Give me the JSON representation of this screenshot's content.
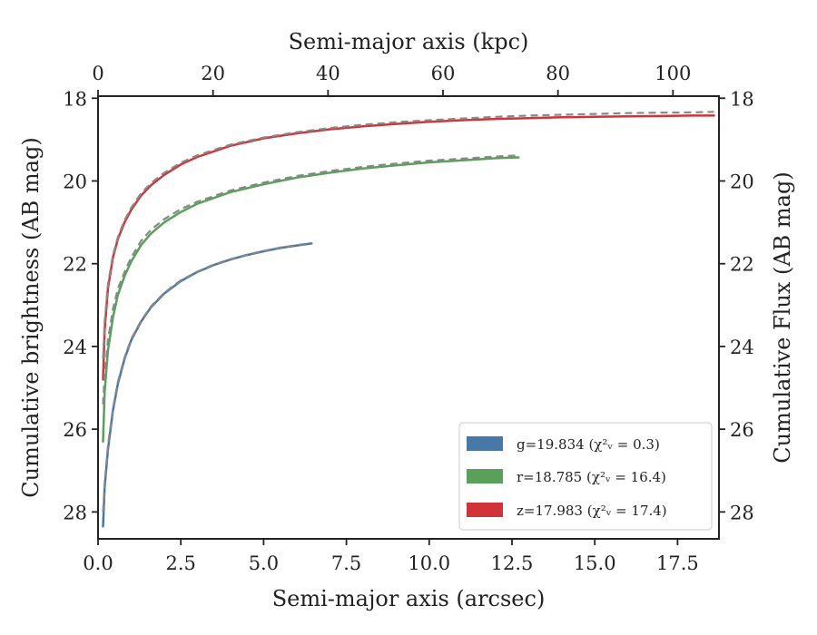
{
  "chart_data": {
    "type": "line",
    "xlabel": "Semi-major axis (arcsec)",
    "ylabel": "Cumulative brightness (AB mag)",
    "x2label": "Semi-major axis (kpc)",
    "y2label": "Cumulative Flux (AB mag)",
    "xlim": [
      0,
      18.75
    ],
    "ylim": [
      28.65,
      17.95
    ],
    "x2lim": [
      0,
      108
    ],
    "xticks": [
      "0.0",
      "2.5",
      "5.0",
      "7.5",
      "10.0",
      "12.5",
      "15.0",
      "17.5"
    ],
    "yticks": [
      "18",
      "20",
      "22",
      "24",
      "26",
      "28"
    ],
    "x2ticks": [
      "0",
      "20",
      "40",
      "60",
      "80",
      "100"
    ],
    "y2ticks": [
      "18",
      "20",
      "22",
      "24",
      "26",
      "28"
    ],
    "grid": false,
    "legend_position": "lower-right",
    "series": [
      {
        "name": "g=19.834",
        "chi_label": "(χ²ᵥ = 0.3)",
        "color": "#4878a8",
        "x": [
          0.15,
          0.2,
          0.3,
          0.45,
          0.6,
          0.8,
          1.0,
          1.3,
          1.6,
          2.0,
          2.5,
          3.0,
          3.5,
          4.0,
          4.5,
          5.0,
          5.5,
          6.0,
          6.45
        ],
        "values": [
          28.35,
          27.4,
          26.5,
          25.55,
          24.9,
          24.3,
          23.85,
          23.4,
          23.05,
          22.72,
          22.42,
          22.2,
          22.03,
          21.9,
          21.79,
          21.7,
          21.62,
          21.56,
          21.51
        ]
      },
      {
        "name": "r=18.785",
        "chi_label": "(χ²ᵥ = 16.4)",
        "color": "#5aa05a",
        "x": [
          0.15,
          0.2,
          0.3,
          0.45,
          0.6,
          0.8,
          1.0,
          1.3,
          1.6,
          2.0,
          2.5,
          3.0,
          4.0,
          5.0,
          6.0,
          7.0,
          8.0,
          9.0,
          10.0,
          11.0,
          12.0,
          12.7
        ],
        "values": [
          26.3,
          25.1,
          24.1,
          23.3,
          22.75,
          22.3,
          21.95,
          21.55,
          21.27,
          21.0,
          20.75,
          20.55,
          20.27,
          20.08,
          19.92,
          19.8,
          19.7,
          19.62,
          19.55,
          19.5,
          19.45,
          19.43
        ]
      },
      {
        "name": "z=17.983",
        "chi_label": "(χ²ᵥ = 17.4)",
        "color": "#d03438",
        "x": [
          0.15,
          0.2,
          0.3,
          0.45,
          0.6,
          0.8,
          1.0,
          1.3,
          1.6,
          2.0,
          2.5,
          3.0,
          4.0,
          5.0,
          6.0,
          7.0,
          8.0,
          9.0,
          10.0,
          11.0,
          12.0,
          13.0,
          14.0,
          15.0,
          16.0,
          17.0,
          18.0,
          18.6
        ],
        "values": [
          24.8,
          23.6,
          22.6,
          21.85,
          21.4,
          21.0,
          20.7,
          20.35,
          20.1,
          19.85,
          19.6,
          19.42,
          19.15,
          18.97,
          18.85,
          18.75,
          18.68,
          18.62,
          18.57,
          18.53,
          18.5,
          18.48,
          18.46,
          18.45,
          18.44,
          18.43,
          18.42,
          18.42
        ]
      }
    ],
    "model_series": [
      {
        "color": "#888888",
        "x": [
          0.15,
          0.2,
          0.3,
          0.45,
          0.6,
          0.8,
          1.0,
          1.3,
          1.6,
          2.0,
          2.5,
          3.0,
          3.5,
          4.0,
          4.5,
          5.0,
          5.5,
          6.0,
          6.45
        ],
        "values": [
          28.0,
          27.3,
          26.4,
          25.5,
          24.85,
          24.27,
          23.82,
          23.38,
          23.03,
          22.7,
          22.4,
          22.19,
          22.02,
          21.89,
          21.78,
          21.69,
          21.61,
          21.55,
          21.5
        ]
      },
      {
        "color": "#888888",
        "x": [
          0.15,
          0.2,
          0.3,
          0.45,
          0.6,
          0.8,
          1.0,
          1.3,
          1.6,
          2.0,
          2.5,
          3.0,
          4.0,
          5.0,
          6.0,
          7.0,
          8.0,
          9.0,
          10.0,
          11.0,
          12.0,
          12.7
        ],
        "values": [
          25.4,
          24.7,
          23.85,
          23.1,
          22.6,
          22.2,
          21.85,
          21.45,
          21.18,
          20.92,
          20.68,
          20.5,
          20.23,
          20.04,
          19.88,
          19.76,
          19.66,
          19.58,
          19.51,
          19.46,
          19.41,
          19.38
        ]
      },
      {
        "color": "#888888",
        "x": [
          0.15,
          0.2,
          0.3,
          0.45,
          0.6,
          0.8,
          1.0,
          1.3,
          1.6,
          2.0,
          2.5,
          3.0,
          4.0,
          5.0,
          6.0,
          7.0,
          8.0,
          9.0,
          10.0,
          11.0,
          12.0,
          13.0,
          14.0,
          15.0,
          16.0,
          17.0,
          18.0,
          18.6
        ],
        "values": [
          24.3,
          23.4,
          22.5,
          21.8,
          21.35,
          20.95,
          20.65,
          20.3,
          20.05,
          19.8,
          19.56,
          19.38,
          19.12,
          18.95,
          18.82,
          18.72,
          18.64,
          18.58,
          18.53,
          18.49,
          18.45,
          18.42,
          18.4,
          18.38,
          18.36,
          18.35,
          18.34,
          18.33
        ]
      }
    ]
  }
}
